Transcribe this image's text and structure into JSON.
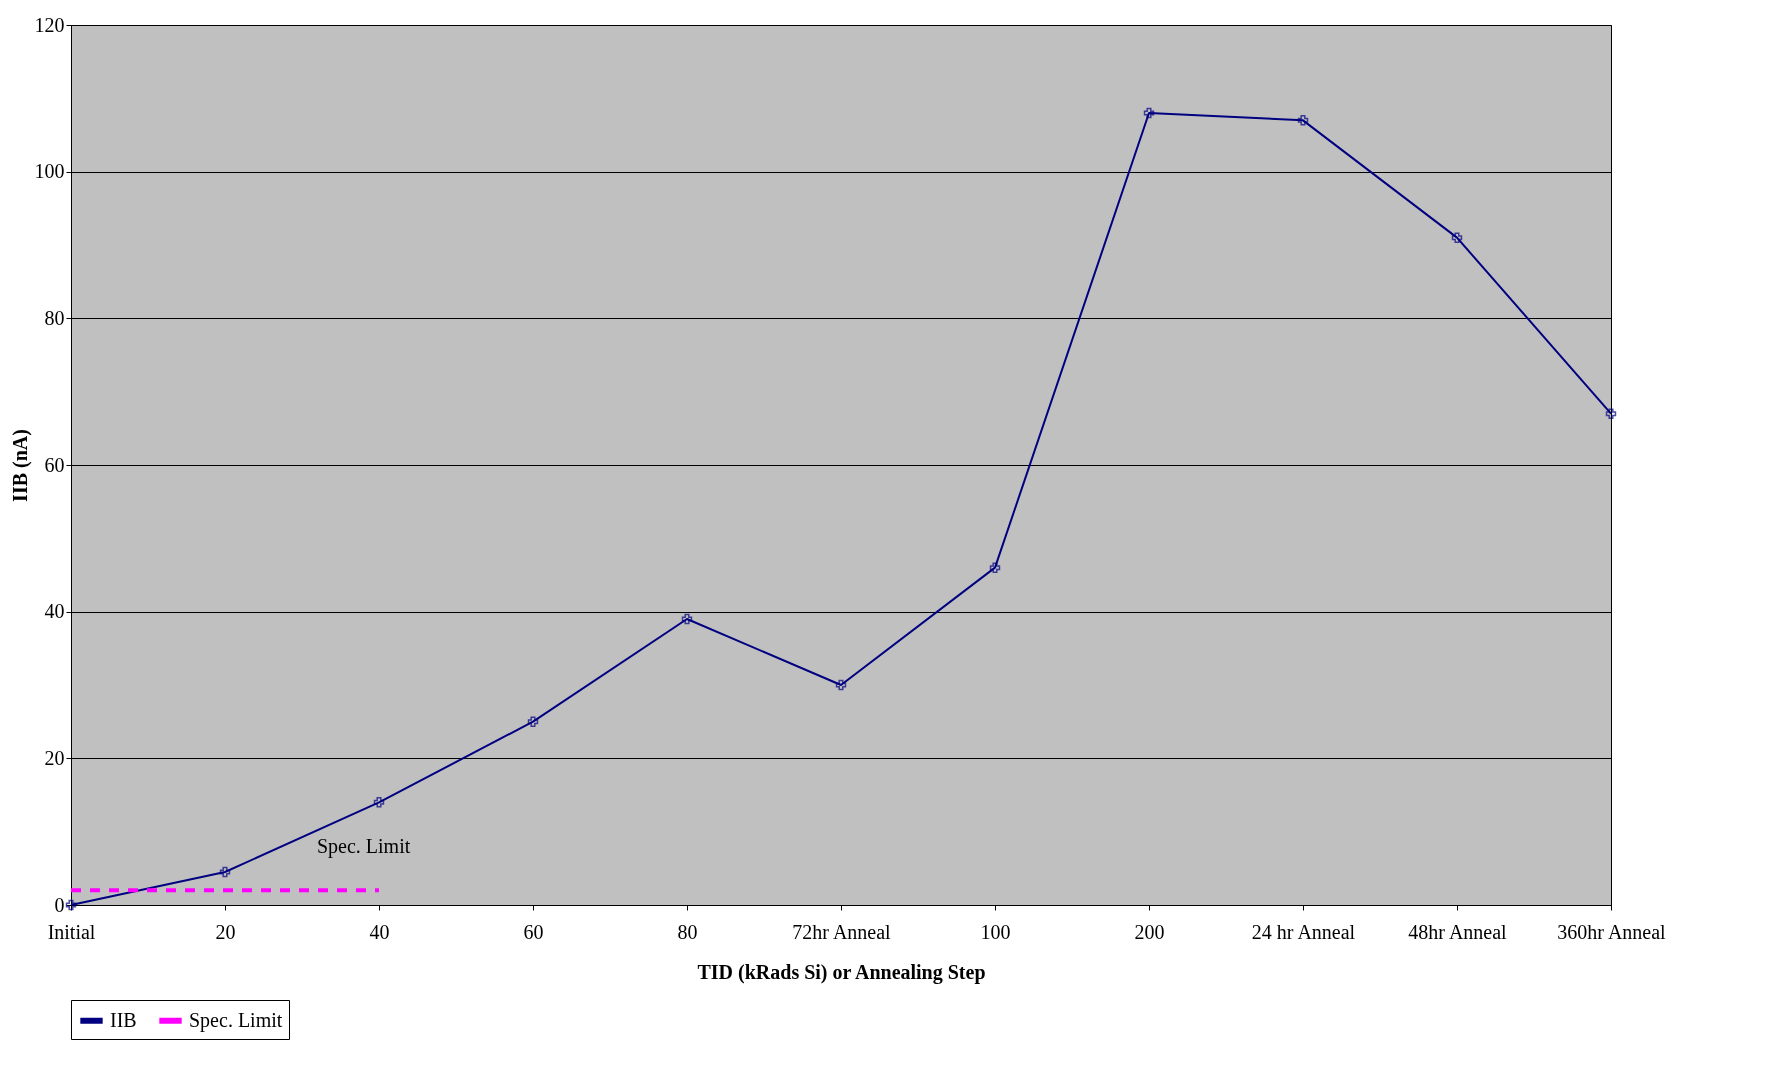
{
  "chart_data": {
    "type": "line",
    "xlabel": "TID (kRads Si) or Annealing Step",
    "ylabel": "IIB (nA)",
    "categories": [
      "Initial",
      "20",
      "40",
      "60",
      "80",
      "72hr Anneal",
      "100",
      "200",
      "24 hr Anneal",
      "48hr Anneal",
      "360hr Anneal"
    ],
    "series": [
      {
        "name": "IIB",
        "color": "#000080",
        "values": [
          0,
          4.5,
          14,
          25,
          39,
          30,
          46,
          108,
          107,
          91,
          67
        ],
        "marker": "cross",
        "line_style": "solid"
      },
      {
        "name": "Spec. Limit",
        "color": "#ff00ff",
        "values": [
          2,
          2,
          2,
          null,
          null,
          null,
          null,
          null,
          null,
          null,
          null
        ],
        "marker": "none",
        "line_style": "dashed"
      }
    ],
    "annotations": [
      "Spec. Limit"
    ],
    "ylim": [
      0,
      120
    ],
    "yticks": [
      0,
      20,
      40,
      60,
      80,
      100,
      120
    ],
    "grid": "y",
    "legend": "bottom"
  }
}
